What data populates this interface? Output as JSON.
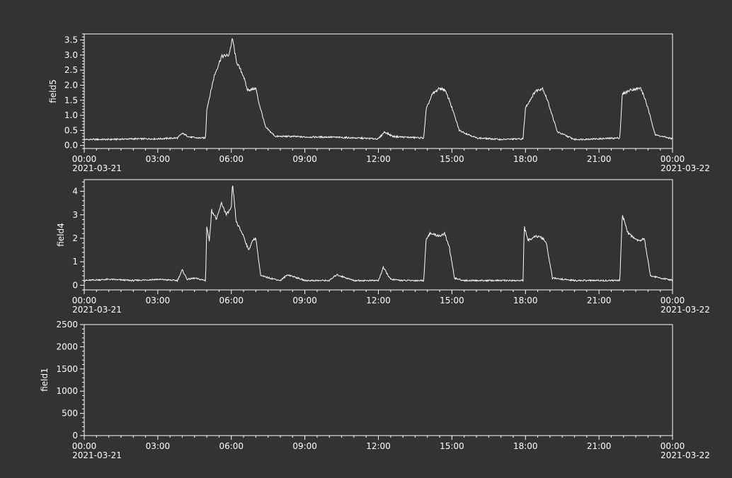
{
  "colors": {
    "background": "#333333",
    "foreground": "#ffffff"
  },
  "chart_data": [
    {
      "type": "line",
      "ylabel": "field5",
      "ylim": [
        -0.1,
        3.7
      ],
      "yticks": [
        0,
        0.5,
        1,
        1.5,
        2,
        2.5,
        3,
        3.5
      ],
      "ytick_labels": [
        "0.0",
        "0.5",
        "1.0",
        "1.5",
        "2.0",
        "2.5",
        "3.0",
        "3.5"
      ],
      "x_hours": [
        0,
        3,
        6,
        9,
        12,
        15,
        18,
        21,
        24
      ],
      "xtick_labels": [
        "00:00",
        "03:00",
        "06:00",
        "09:00",
        "12:00",
        "15:00",
        "18:00",
        "21:00",
        "00:00"
      ],
      "xtick_dates": [
        "2021-03-21",
        "",
        "",
        "",
        "",
        "",
        "",
        "",
        "2021-03-22"
      ],
      "series": [
        {
          "x_hours": [
            0,
            1,
            2,
            3,
            3.8,
            4.0,
            4.3,
            4.6,
            4.95,
            5.0,
            5.3,
            5.6,
            5.9,
            6.05,
            6.2,
            6.5,
            6.65,
            6.8,
            7.0,
            7.1,
            7.4,
            7.8,
            8.5,
            9,
            10,
            11,
            12,
            12.25,
            12.6,
            13,
            13.85,
            13.95,
            14.2,
            14.5,
            14.7,
            14.9,
            15.3,
            16,
            17,
            17.9,
            18.0,
            18.4,
            18.7,
            18.9,
            19.3,
            20,
            21,
            21.85,
            21.95,
            22.3,
            22.7,
            22.9,
            23.3,
            24
          ],
          "values": [
            0.2,
            0.2,
            0.22,
            0.22,
            0.25,
            0.4,
            0.28,
            0.25,
            0.25,
            1.2,
            2.3,
            2.95,
            3.0,
            3.55,
            2.8,
            2.3,
            1.85,
            1.85,
            1.9,
            1.5,
            0.6,
            0.3,
            0.3,
            0.28,
            0.28,
            0.25,
            0.22,
            0.45,
            0.3,
            0.28,
            0.25,
            1.2,
            1.7,
            1.9,
            1.85,
            1.5,
            0.5,
            0.25,
            0.2,
            0.22,
            1.25,
            1.8,
            1.9,
            1.5,
            0.45,
            0.2,
            0.22,
            0.25,
            1.7,
            1.85,
            1.9,
            1.5,
            0.35,
            0.22
          ]
        }
      ]
    },
    {
      "type": "line",
      "ylabel": "field4",
      "ylim": [
        -0.2,
        4.5
      ],
      "yticks": [
        0,
        1,
        2,
        3,
        4
      ],
      "ytick_labels": [
        "0",
        "1",
        "2",
        "3",
        "4"
      ],
      "x_hours": [
        0,
        3,
        6,
        9,
        12,
        15,
        18,
        21,
        24
      ],
      "xtick_labels": [
        "00:00",
        "03:00",
        "06:00",
        "09:00",
        "12:00",
        "15:00",
        "18:00",
        "21:00",
        "00:00"
      ],
      "xtick_dates": [
        "2021-03-21",
        "",
        "",
        "",
        "",
        "",
        "",
        "",
        "2021-03-22"
      ],
      "series": [
        {
          "x_hours": [
            0,
            1,
            2,
            3,
            3.8,
            4.0,
            4.2,
            4.5,
            4.95,
            5.0,
            5.1,
            5.2,
            5.4,
            5.6,
            5.8,
            6.0,
            6.05,
            6.2,
            6.5,
            6.7,
            6.9,
            7.0,
            7.2,
            8,
            8.3,
            9,
            10,
            10.3,
            11,
            12,
            12.2,
            12.5,
            13,
            13.85,
            13.95,
            14.1,
            14.5,
            14.7,
            14.9,
            15.1,
            15.5,
            16,
            17,
            17.9,
            17.95,
            18.1,
            18.4,
            18.7,
            18.85,
            19.1,
            20,
            21,
            21.85,
            21.95,
            22.2,
            22.6,
            22.85,
            23.1,
            24
          ],
          "values": [
            0.2,
            0.25,
            0.2,
            0.25,
            0.2,
            0.65,
            0.25,
            0.3,
            0.2,
            2.5,
            1.9,
            3.2,
            2.8,
            3.5,
            3.0,
            3.3,
            4.3,
            2.7,
            2.1,
            1.5,
            1.95,
            2.0,
            0.4,
            0.2,
            0.45,
            0.2,
            0.2,
            0.45,
            0.2,
            0.2,
            0.75,
            0.25,
            0.2,
            0.2,
            2.0,
            2.2,
            2.1,
            2.2,
            1.6,
            0.3,
            0.2,
            0.2,
            0.2,
            0.2,
            2.5,
            1.9,
            2.1,
            2.0,
            1.8,
            0.3,
            0.2,
            0.2,
            0.2,
            3.0,
            2.2,
            1.9,
            2.0,
            0.4,
            0.2
          ]
        }
      ]
    },
    {
      "type": "line",
      "ylabel": "field1",
      "ylim": [
        0,
        2500
      ],
      "yticks": [
        0,
        500,
        1000,
        1500,
        2000,
        2500
      ],
      "ytick_labels": [
        "0",
        "500",
        "1000",
        "1500",
        "2000",
        "2500"
      ],
      "x_hours": [
        0,
        3,
        6,
        9,
        12,
        15,
        18,
        21,
        24
      ],
      "xtick_labels": [
        "00:00",
        "03:00",
        "06:00",
        "09:00",
        "12:00",
        "15:00",
        "18:00",
        "21:00",
        "00:00"
      ],
      "xtick_dates": [
        "2021-03-21",
        "",
        "",
        "",
        "",
        "",
        "",
        "",
        "2021-03-22"
      ],
      "series": []
    }
  ]
}
